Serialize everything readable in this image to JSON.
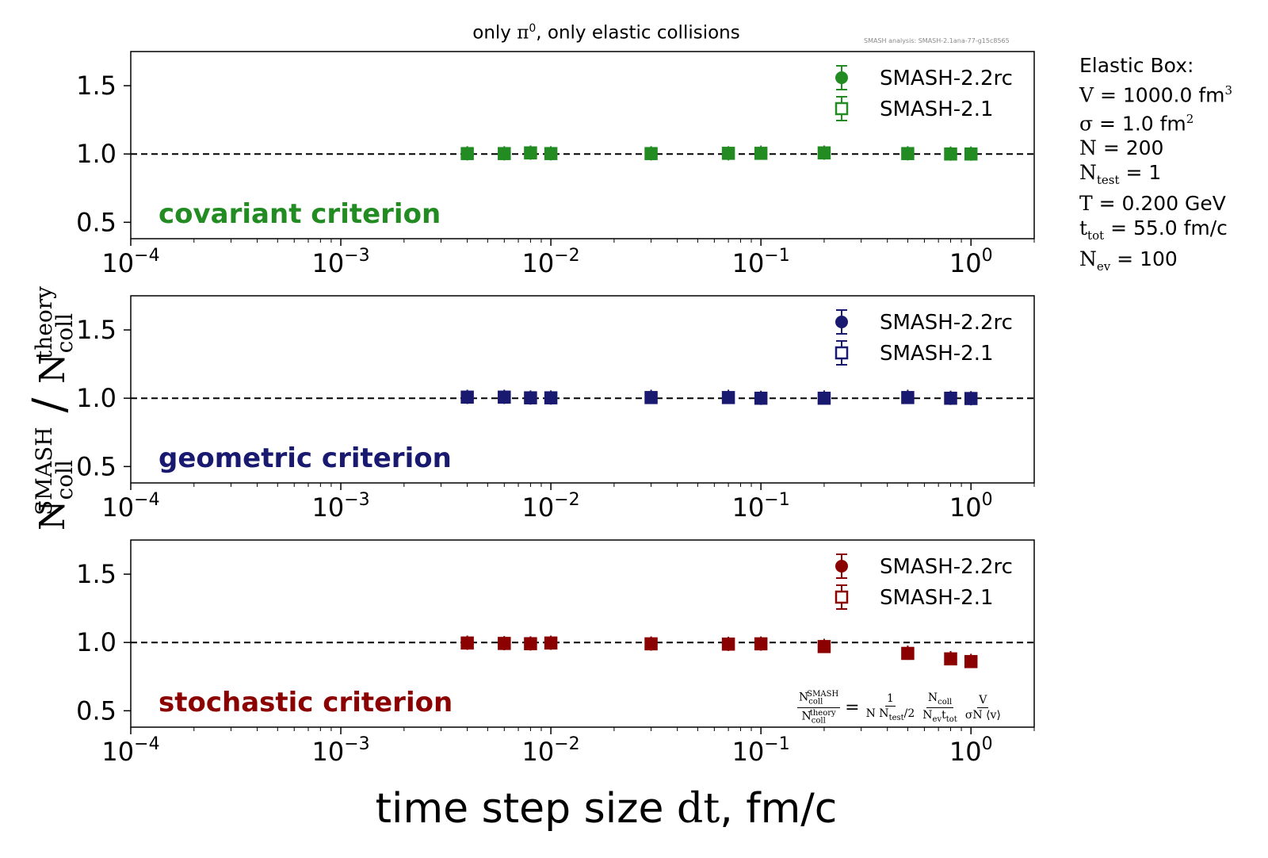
{
  "title": {
    "prefix": "only ",
    "symbol": "π",
    "sup": "0",
    "suffix": ", only elastic collisions"
  },
  "watermark": "SMASH analysis: SMASH-2.1ana-77-g15c8565",
  "info": {
    "heading": "Elastic Box",
    "lines": [
      {
        "sym": "V",
        "val": " = 1000.0 fm",
        "sup": "3"
      },
      {
        "sym": "σ",
        "val": " = 1.0 fm",
        "sup": "2"
      },
      {
        "sym": "N",
        "val": " = 200"
      },
      {
        "sym": "N",
        "sub": "test",
        "val": " = 1"
      },
      {
        "sym": "T",
        "val": " = 0.200 GeV"
      },
      {
        "sym": "t",
        "sub": "tot",
        "val": " = 55.0 fm/c"
      },
      {
        "sym": "N",
        "sub": "ev",
        "val": " = 100"
      }
    ]
  },
  "xlabel": {
    "prefix": "time step size ",
    "symbol": "dt",
    "suffix": ", fm/c"
  },
  "ylabel": {
    "num": "N",
    "num_sub": "coll",
    "num_sup": "SMASH",
    "den": "N",
    "den_sub": "coll",
    "den_sup": "theory"
  },
  "formula": {
    "lhs_num": "N",
    "lhs_num_sub": "coll",
    "lhs_num_sup": "SMASH",
    "lhs_den": "N",
    "lhs_den_sub": "coll",
    "lhs_den_sup": "theory",
    "eq": "=",
    "f1_num": "1",
    "f1_den_a": "N N",
    "f1_den_sub": "test",
    "f1_den_b": "/2",
    "f2_num": "N",
    "f2_num_sub": "coll",
    "f2_den": "N",
    "f2_den_sub1": "ev",
    "f2_den_mid": "t",
    "f2_den_sub2": "tot",
    "f3_num": "V",
    "f3_den": "σN ⟨v⟩"
  },
  "chart_data": [
    {
      "type": "scatter",
      "panel": "covariant criterion",
      "color": "#228b22",
      "xscale": "log",
      "xlim": [
        0.0001,
        2.0
      ],
      "ylim": [
        0.38,
        1.75
      ],
      "yticks": [
        0.5,
        1.0,
        1.5
      ],
      "reference_line": 1.0,
      "xtick_labels": [
        {
          "base": "10",
          "exp": "−4"
        },
        {
          "base": "10",
          "exp": "−3"
        },
        {
          "base": "10",
          "exp": "−2"
        },
        {
          "base": "10",
          "exp": "−1"
        },
        {
          "base": "10",
          "exp": "0"
        }
      ],
      "series": [
        {
          "name": "SMASH-2.2rc",
          "marker": "circle",
          "x": [
            0.004,
            0.006,
            0.008,
            0.01,
            0.03,
            0.07,
            0.1,
            0.2,
            0.5,
            0.8,
            1.0
          ],
          "y": [
            1.005,
            1.005,
            1.01,
            1.005,
            1.005,
            1.005,
            1.01,
            1.01,
            1.005,
            1.003,
            1.003
          ]
        },
        {
          "name": "SMASH-2.1",
          "marker": "open-square",
          "x": [
            0.004,
            0.006,
            0.008,
            0.01,
            0.03,
            0.07,
            0.1,
            0.2,
            0.5,
            0.8,
            1.0
          ],
          "y": [
            1.003,
            1.003,
            1.008,
            1.003,
            1.003,
            1.005,
            1.005,
            1.008,
            1.003,
            1.0,
            1.0
          ]
        }
      ]
    },
    {
      "type": "scatter",
      "panel": "geometric criterion",
      "color": "#191970",
      "xscale": "log",
      "xlim": [
        0.0001,
        2.0
      ],
      "ylim": [
        0.38,
        1.75
      ],
      "yticks": [
        0.5,
        1.0,
        1.5
      ],
      "reference_line": 1.0,
      "xtick_labels": [
        {
          "base": "10",
          "exp": "−4"
        },
        {
          "base": "10",
          "exp": "−3"
        },
        {
          "base": "10",
          "exp": "−2"
        },
        {
          "base": "10",
          "exp": "−1"
        },
        {
          "base": "10",
          "exp": "0"
        }
      ],
      "series": [
        {
          "name": "SMASH-2.2rc",
          "marker": "circle",
          "x": [
            0.004,
            0.006,
            0.008,
            0.01,
            0.03,
            0.07,
            0.1,
            0.2,
            0.5,
            0.8,
            1.0
          ],
          "y": [
            1.01,
            1.01,
            1.005,
            1.005,
            1.01,
            1.01,
            1.003,
            1.005,
            1.01,
            1.003,
            1.0
          ]
        },
        {
          "name": "SMASH-2.1",
          "marker": "open-square",
          "x": [
            0.004,
            0.006,
            0.008,
            0.01,
            0.03,
            0.07,
            0.1,
            0.2,
            0.5,
            0.8,
            1.0
          ],
          "y": [
            1.008,
            1.008,
            1.003,
            1.003,
            1.005,
            1.005,
            1.0,
            1.0,
            1.005,
            1.0,
            0.998
          ]
        }
      ]
    },
    {
      "type": "scatter",
      "panel": "stochastic criterion",
      "color": "#8b0000",
      "xscale": "log",
      "xlim": [
        0.0001,
        2.0
      ],
      "ylim": [
        0.38,
        1.75
      ],
      "yticks": [
        0.5,
        1.0,
        1.5
      ],
      "reference_line": 1.0,
      "xtick_labels": [
        {
          "base": "10",
          "exp": "−4"
        },
        {
          "base": "10",
          "exp": "−3"
        },
        {
          "base": "10",
          "exp": "−2"
        },
        {
          "base": "10",
          "exp": "−1"
        },
        {
          "base": "10",
          "exp": "0"
        }
      ],
      "series": [
        {
          "name": "SMASH-2.2rc",
          "marker": "circle",
          "x": [
            0.004,
            0.006,
            0.008,
            0.01,
            0.03,
            0.07,
            0.1,
            0.2,
            0.5,
            0.8,
            1.0
          ],
          "y": [
            0.998,
            0.995,
            0.993,
            0.998,
            0.992,
            0.99,
            0.992,
            0.975,
            0.925,
            0.885,
            0.865
          ]
        },
        {
          "name": "SMASH-2.1",
          "marker": "open-square",
          "x": [
            0.004,
            0.006,
            0.008,
            0.01,
            0.03,
            0.07,
            0.1,
            0.2,
            0.5,
            0.8,
            1.0
          ],
          "y": [
            0.996,
            0.993,
            0.991,
            0.996,
            0.99,
            0.988,
            0.99,
            0.97,
            0.92,
            0.88,
            0.86
          ]
        }
      ]
    }
  ]
}
